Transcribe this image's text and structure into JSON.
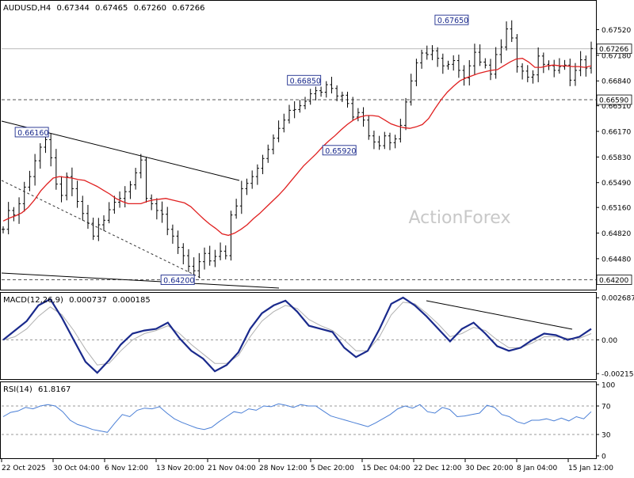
{
  "header": {
    "symbol_tf": "AUDUSD,H4",
    "ohlc": [
      "0.67344",
      "0.67465",
      "0.67260",
      "0.67266"
    ]
  },
  "watermark": "ActionForex",
  "colors": {
    "ma": "#e02020",
    "macd": "#1a2a8c",
    "signal": "#b0b0b0",
    "rsi": "#4a7fd6",
    "label_border": "#1a2a8c",
    "label_text": "#1a2a8c",
    "current_price_bg": "#ffffff"
  },
  "chart_data": [
    {
      "type": "candlestick",
      "title": "AUDUSD,H4",
      "y_ticks": [
        "0.67520",
        "0.67180",
        "0.66840",
        "0.66510",
        "0.66170",
        "0.65830",
        "0.65490",
        "0.65160",
        "0.64820",
        "0.64480",
        "0.64200"
      ],
      "y_tick_values": [
        0.6752,
        0.6718,
        0.6684,
        0.6651,
        0.6617,
        0.6583,
        0.6549,
        0.6516,
        0.6482,
        0.6448,
        0.642
      ],
      "ylim": [
        0.6409,
        0.6783
      ],
      "current_price": "0.67266",
      "current_price_value": 0.67266,
      "horizontal_levels": [
        {
          "label": "0.66590",
          "value": 0.6659
        },
        {
          "label": "0.64200",
          "value": 0.642
        }
      ],
      "annotations": [
        {
          "label": "0.67650",
          "value": 0.6765,
          "anchor_x": 0.791
        },
        {
          "label": "0.66850",
          "value": 0.6685,
          "anchor_x": 0.54
        },
        {
          "label": "0.65920",
          "value": 0.6592,
          "anchor_x": 0.6
        },
        {
          "label": "0.66160",
          "value": 0.6616,
          "anchor_x": 0.077
        },
        {
          "label": "0.64200",
          "value": 0.642,
          "anchor_x": 0.325
        }
      ],
      "close_series": [
        0.6487,
        0.6512,
        0.6506,
        0.6521,
        0.6543,
        0.6557,
        0.6578,
        0.6596,
        0.6606,
        0.6582,
        0.6547,
        0.6532,
        0.6557,
        0.6541,
        0.6524,
        0.6508,
        0.6495,
        0.6478,
        0.6493,
        0.6499,
        0.6513,
        0.6523,
        0.6528,
        0.6537,
        0.6546,
        0.6562,
        0.6579,
        0.6528,
        0.6521,
        0.6512,
        0.6507,
        0.6487,
        0.6478,
        0.6463,
        0.6452,
        0.6438,
        0.6432,
        0.6444,
        0.6455,
        0.6445,
        0.6451,
        0.6458,
        0.6452,
        0.6506,
        0.6518,
        0.6541,
        0.6548,
        0.6557,
        0.6568,
        0.6581,
        0.6593,
        0.6608,
        0.6621,
        0.6632,
        0.6645,
        0.6646,
        0.6651,
        0.6657,
        0.6667,
        0.6671,
        0.6669,
        0.6679,
        0.6674,
        0.6664,
        0.6665,
        0.6654,
        0.6636,
        0.6642,
        0.6632,
        0.6611,
        0.6603,
        0.6598,
        0.6611,
        0.6602,
        0.6607,
        0.6625,
        0.6656,
        0.6684,
        0.6708,
        0.6721,
        0.6719,
        0.6724,
        0.6714,
        0.6704,
        0.6706,
        0.6711,
        0.6698,
        0.6688,
        0.6704,
        0.6722,
        0.6709,
        0.6705,
        0.6693,
        0.6719,
        0.6729,
        0.6753,
        0.6741,
        0.6703,
        0.6697,
        0.6689,
        0.6692,
        0.6717,
        0.6706,
        0.6704,
        0.6698,
        0.6703,
        0.6705,
        0.6685,
        0.6698,
        0.6712,
        0.6701,
        0.6727
      ],
      "ma_series": [
        0.6498,
        0.6502,
        0.6505,
        0.6509,
        0.6516,
        0.6526,
        0.6538,
        0.6547,
        0.6555,
        0.6557,
        0.6556,
        0.6555,
        0.6553,
        0.6552,
        0.6548,
        0.6544,
        0.6539,
        0.6534,
        0.6528,
        0.6524,
        0.6521,
        0.6521,
        0.6521,
        0.6524,
        0.6526,
        0.6527,
        0.6528,
        0.6526,
        0.6524,
        0.6522,
        0.6517,
        0.6509,
        0.6501,
        0.6494,
        0.6488,
        0.6481,
        0.6479,
        0.6482,
        0.6487,
        0.6493,
        0.6501,
        0.6508,
        0.6516,
        0.6524,
        0.6532,
        0.6541,
        0.6551,
        0.6561,
        0.6571,
        0.6579,
        0.6587,
        0.6596,
        0.6604,
        0.6611,
        0.6619,
        0.6626,
        0.6632,
        0.6636,
        0.6638,
        0.6638,
        0.6637,
        0.6632,
        0.6627,
        0.6624,
        0.6622,
        0.6621,
        0.6623,
        0.6626,
        0.6634,
        0.6647,
        0.6659,
        0.6669,
        0.6677,
        0.6684,
        0.6688,
        0.6691,
        0.6694,
        0.6696,
        0.6698,
        0.6699,
        0.6704,
        0.6709,
        0.6713,
        0.6714,
        0.6709,
        0.6702,
        0.6702,
        0.6704,
        0.6705,
        0.6704,
        0.6704,
        0.6703,
        0.6703,
        0.6702,
        0.6704
      ]
    },
    {
      "type": "line",
      "title": "MACD(12,26,9)",
      "values_text": [
        "0.000737",
        "0.000185"
      ],
      "y_ticks": [
        "0.002687",
        "0.00",
        "-0.002154"
      ],
      "y_tick_values": [
        0.002687,
        0.0,
        -0.002154
      ],
      "ylim": [
        -0.0024,
        0.0029
      ],
      "series": [
        {
          "name": "MACD",
          "values": [
            0.0,
            0.0006,
            0.0012,
            0.0022,
            0.0026,
            0.0014,
            0.0,
            -0.0014,
            -0.0021,
            -0.0013,
            -0.0003,
            0.0004,
            0.0006,
            0.0007,
            0.0011,
            0.0001,
            -0.0007,
            -0.0012,
            -0.002,
            -0.0016,
            -0.0008,
            0.0007,
            0.0017,
            0.0022,
            0.0025,
            0.0018,
            0.0009,
            0.0007,
            0.0005,
            -0.0005,
            -0.0011,
            -0.0007,
            0.0007,
            0.0023,
            0.0027,
            0.0022,
            0.0015,
            0.0007,
            -0.0001,
            0.0007,
            0.0011,
            0.0004,
            -0.0004,
            -0.0007,
            -0.0005,
            0.0,
            0.0004,
            0.0003,
            0.0,
            0.0002,
            0.0007
          ]
        },
        {
          "name": "Signal",
          "values": [
            0.0,
            0.0002,
            0.0007,
            0.0015,
            0.0021,
            0.0016,
            0.0006,
            -0.0006,
            -0.0016,
            -0.0015,
            -0.0007,
            0.0,
            0.0004,
            0.0006,
            0.0009,
            0.0004,
            -0.0003,
            -0.0009,
            -0.0015,
            -0.0015,
            -0.001,
            0.0002,
            0.0012,
            0.0018,
            0.0022,
            0.002,
            0.0013,
            0.0009,
            0.0006,
            0.0,
            -0.0007,
            -0.0007,
            0.0002,
            0.0016,
            0.0024,
            0.0023,
            0.0017,
            0.001,
            0.0002,
            0.0004,
            0.0008,
            0.0006,
            0.0,
            -0.0005,
            -0.0005,
            -0.0002,
            0.0002,
            0.0002,
            0.0001,
            0.0001,
            0.0004
          ]
        }
      ]
    },
    {
      "type": "line",
      "title": "RSI(14)",
      "value_text": "61.8167",
      "y_ticks": [
        "100",
        "70",
        "30",
        "0"
      ],
      "y_tick_values": [
        100,
        70,
        30,
        0
      ],
      "ylim": [
        0,
        100
      ],
      "series": [
        {
          "name": "RSI",
          "values": [
            55,
            61,
            63,
            68,
            66,
            70,
            72,
            70,
            62,
            50,
            44,
            41,
            37,
            35,
            33,
            46,
            58,
            55,
            64,
            67,
            66,
            69,
            60,
            52,
            47,
            43,
            39,
            37,
            40,
            48,
            55,
            62,
            60,
            66,
            64,
            70,
            69,
            73,
            71,
            68,
            72,
            70,
            70,
            63,
            56,
            53,
            50,
            47,
            44,
            41,
            46,
            52,
            58,
            66,
            70,
            67,
            72,
            62,
            60,
            68,
            65,
            55,
            56,
            58,
            60,
            71,
            68,
            58,
            55,
            48,
            45,
            50,
            50,
            52,
            49,
            53,
            49,
            55,
            52,
            62
          ]
        }
      ]
    }
  ],
  "x_axis": {
    "tick_labels": [
      "22 Oct 2025",
      "30 Oct 04:00",
      "6 Nov 12:00",
      "13 Nov 20:00",
      "21 Nov 04:00",
      "28 Nov 12:00",
      "5 Dec 20:00",
      "15 Dec 04:00",
      "22 Dec 12:00",
      "30 Dec 20:00",
      "8 Jan 04:00",
      "15 Jan 12:00"
    ]
  }
}
